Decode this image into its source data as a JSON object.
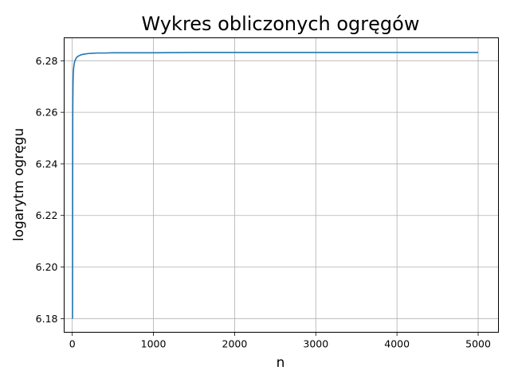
{
  "chart_data": {
    "type": "line",
    "title": "Wykres obliczonych ogręgów",
    "xlabel": "n",
    "ylabel": "logarytm ogręgu",
    "xlim": [
      -100,
      5250
    ],
    "ylim": [
      6.1747,
      6.2889
    ],
    "xticks": [
      0,
      1000,
      2000,
      3000,
      4000,
      5000
    ],
    "xtick_labels": [
      "0",
      "1000",
      "2000",
      "3000",
      "4000",
      "5000"
    ],
    "yticks": [
      6.18,
      6.2,
      6.22,
      6.24,
      6.26,
      6.28
    ],
    "ytick_labels": [
      "6.18",
      "6.20",
      "6.22",
      "6.24",
      "6.26",
      "6.28"
    ],
    "grid": true,
    "legend": "none",
    "series": [
      {
        "color": "#1f77b4",
        "x": [
          3,
          6,
          9,
          12,
          15,
          20,
          25,
          30,
          40,
          50,
          60,
          80,
          100,
          120,
          150,
          200,
          250,
          300,
          400,
          500,
          700,
          1000,
          1500,
          2000,
          3000,
          4000,
          5000
        ],
        "y": [
          6.18,
          6.2594,
          6.2705,
          6.2745,
          6.2764,
          6.278,
          6.279,
          6.2797,
          6.2805,
          6.2811,
          6.2815,
          6.2819,
          6.2822,
          6.2824,
          6.2826,
          6.2828,
          6.2829,
          6.283,
          6.283,
          6.2831,
          6.2831,
          6.2831,
          6.2832,
          6.2832,
          6.2832,
          6.2832,
          6.2832
        ]
      }
    ]
  }
}
